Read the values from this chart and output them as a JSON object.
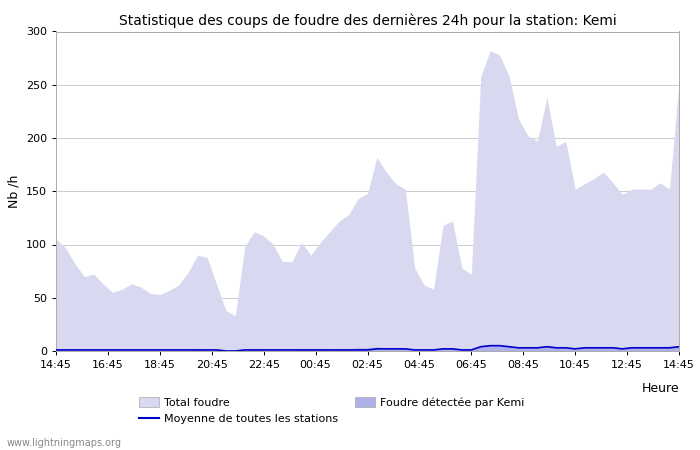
{
  "title": "Statistique des coups de foudre des dernières 24h pour la station: Kemi",
  "xlabel": "Heure",
  "ylabel": "Nb /h",
  "ylim": [
    0,
    300
  ],
  "yticks": [
    0,
    50,
    100,
    150,
    200,
    250,
    300
  ],
  "x_labels": [
    "14:45",
    "16:45",
    "18:45",
    "20:45",
    "22:45",
    "00:45",
    "02:45",
    "04:45",
    "06:45",
    "08:45",
    "10:45",
    "12:45",
    "14:45"
  ],
  "watermark": "www.lightningmaps.org",
  "legend": {
    "total_foudre_label": "Total foudre",
    "kemi_label": "Foudre détectée par Kemi",
    "moyenne_label": "Moyenne de toutes les stations"
  },
  "total_foudre_color": "#d8d8f0",
  "kemi_color": "#b0b0e8",
  "moyenne_color": "#0000cc",
  "background_color": "#ffffff",
  "grid_color": "#cccccc",
  "total_foudre": [
    105,
    97,
    82,
    70,
    72,
    63,
    55,
    58,
    63,
    60,
    54,
    53,
    57,
    62,
    74,
    90,
    88,
    63,
    38,
    33,
    98,
    112,
    108,
    100,
    84,
    84,
    102,
    90,
    102,
    112,
    122,
    128,
    143,
    148,
    182,
    168,
    157,
    152,
    78,
    62,
    58,
    118,
    122,
    78,
    72,
    258,
    282,
    278,
    258,
    218,
    202,
    197,
    238,
    192,
    197,
    152,
    157,
    162,
    168,
    158,
    147,
    152,
    152,
    152,
    158,
    152,
    252
  ],
  "kemi": [
    2,
    1,
    1,
    1,
    1,
    1,
    1,
    1,
    1,
    1,
    1,
    1,
    1,
    1,
    1,
    2,
    1,
    1,
    0,
    0,
    1,
    2,
    1,
    1,
    1,
    1,
    2,
    1,
    2,
    1,
    2,
    2,
    3,
    3,
    4,
    3,
    3,
    3,
    1,
    1,
    1,
    3,
    3,
    2,
    1,
    5,
    6,
    6,
    5,
    4,
    4,
    4,
    5,
    4,
    4,
    3,
    3,
    4,
    4,
    4,
    3,
    4,
    4,
    4,
    4,
    4,
    5
  ],
  "moyenne": [
    1,
    1,
    1,
    1,
    1,
    1,
    1,
    1,
    1,
    1,
    1,
    1,
    1,
    1,
    1,
    1,
    1,
    1,
    0,
    0,
    1,
    1,
    1,
    1,
    1,
    1,
    1,
    1,
    1,
    1,
    1,
    1,
    1,
    1,
    2,
    2,
    2,
    2,
    1,
    1,
    1,
    2,
    2,
    1,
    1,
    4,
    5,
    5,
    4,
    3,
    3,
    3,
    4,
    3,
    3,
    2,
    3,
    3,
    3,
    3,
    2,
    3,
    3,
    3,
    3,
    3,
    4
  ]
}
